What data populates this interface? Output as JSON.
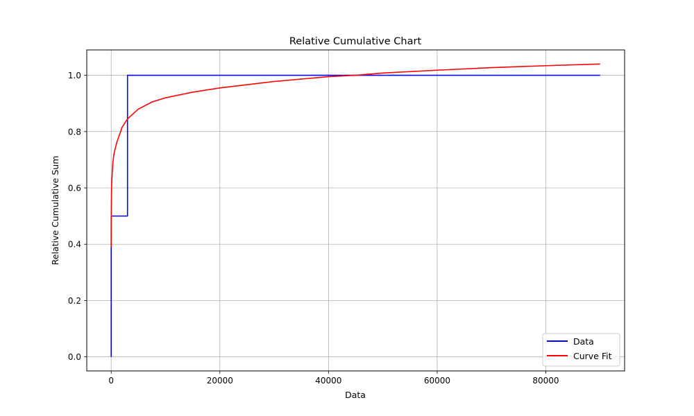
{
  "chart_data": {
    "type": "line",
    "title": "Relative Cumulative Chart",
    "xlabel": "Data",
    "ylabel": "Relative Cumulative Sum",
    "xlim": [
      -4500,
      94500
    ],
    "ylim": [
      -0.05,
      1.09
    ],
    "xticks": [
      0,
      20000,
      40000,
      60000,
      80000
    ],
    "yticks": [
      0.0,
      0.2,
      0.4,
      0.6,
      0.8,
      1.0
    ],
    "xtick_labels": [
      "0",
      "20000",
      "40000",
      "60000",
      "80000"
    ],
    "ytick_labels": [
      "0.0",
      "0.2",
      "0.4",
      "0.6",
      "0.8",
      "1.0"
    ],
    "grid": true,
    "legend_position": "bottom-right",
    "series": [
      {
        "name": "Data",
        "color": "#0000ff",
        "x": [
          0,
          0,
          3000,
          3000,
          90000
        ],
        "y": [
          0.0,
          0.5,
          0.5,
          1.0,
          1.0
        ]
      },
      {
        "name": "Curve Fit",
        "color": "#ff0000",
        "x": [
          1,
          10,
          50,
          100,
          300,
          500,
          1000,
          2000,
          3000,
          5000,
          7500,
          10000,
          15000,
          20000,
          30000,
          40000,
          45000,
          50000,
          60000,
          70000,
          80000,
          90000
        ],
        "y": [
          0.39,
          0.5,
          0.58,
          0.62,
          0.69,
          0.72,
          0.76,
          0.815,
          0.845,
          0.88,
          0.905,
          0.92,
          0.94,
          0.955,
          0.978,
          0.995,
          1.0,
          1.008,
          1.018,
          1.027,
          1.034,
          1.04
        ]
      }
    ]
  }
}
